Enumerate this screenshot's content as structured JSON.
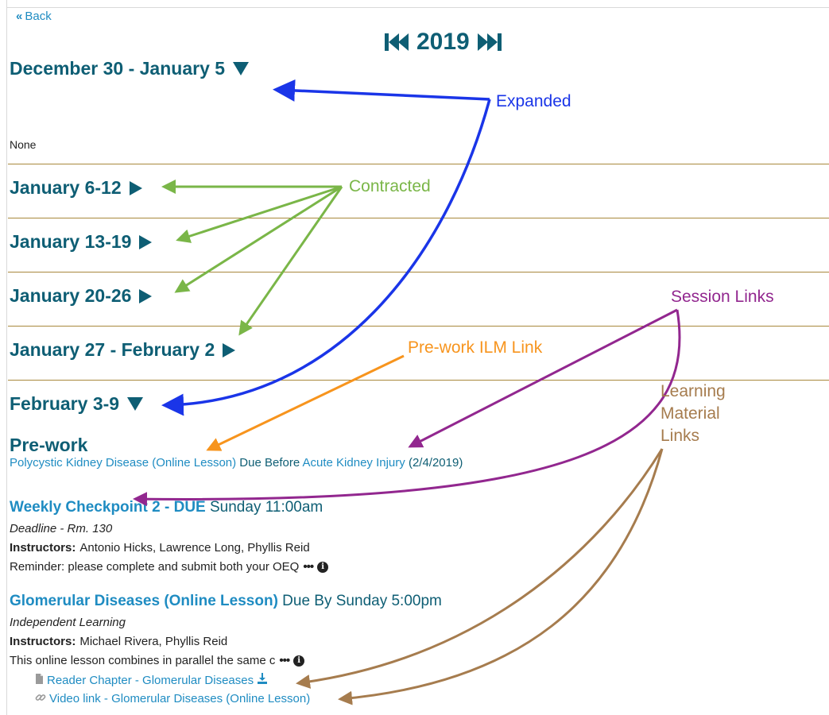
{
  "back": {
    "label": "Back"
  },
  "year_nav": {
    "year": "2019"
  },
  "weeks": [
    {
      "label": "December 30 - January 5",
      "state": "expanded"
    },
    {
      "label": "January 6-12",
      "state": "contracted"
    },
    {
      "label": "January 13-19",
      "state": "contracted"
    },
    {
      "label": "January 20-26",
      "state": "contracted"
    },
    {
      "label": "January 27 - February 2",
      "state": "contracted"
    },
    {
      "label": "February 3-9",
      "state": "expanded"
    }
  ],
  "week1_content": {
    "none_text": "None"
  },
  "prework": {
    "heading": "Pre-work",
    "ilm_link": "Polycystic Kidney Disease (Online Lesson)",
    "due_before": "Due Before",
    "session_link": "Acute Kidney Injury",
    "date": "(2/4/2019)"
  },
  "sessions": [
    {
      "title": "Weekly Checkpoint 2 - DUE",
      "due": "Sunday 11:00am",
      "type": "Deadline - Rm. 130",
      "instructors_label": "Instructors:",
      "instructors": "Antonio Hicks, Lawrence Long, Phyllis Reid",
      "description": "Reminder: please complete and submit both your OEQ"
    },
    {
      "title": "Glomerular Diseases (Online Lesson)",
      "due": "Due By Sunday 5:00pm",
      "type": "Independent Learning",
      "instructors_label": "Instructors:",
      "instructors": "Michael Rivera, Phyllis Reid",
      "description": "This online lesson combines in parallel the same c",
      "materials": [
        {
          "label": "Reader Chapter - Glomerular Diseases",
          "icon": "pdf-file-icon",
          "download": true
        },
        {
          "label": "Video link - Glomerular Diseases (Online Lesson)",
          "icon": "link-icon",
          "download": false
        }
      ]
    }
  ],
  "annotations": {
    "expanded": "Expanded",
    "contracted": "Contracted",
    "session_links": "Session Links",
    "prework_ilm": "Pre-work ILM Link",
    "learning_material_line1": "Learning",
    "learning_material_line2": "Material",
    "learning_material_line3": "Links"
  },
  "colors": {
    "heading": "#0e5e74",
    "link": "#1f8cc2",
    "divider": "#a8883c",
    "annot_expanded": "#1a35e8",
    "annot_contracted": "#7ab648",
    "annot_session": "#92278f",
    "annot_prework": "#f7941d",
    "annot_material": "#a67c4e"
  }
}
